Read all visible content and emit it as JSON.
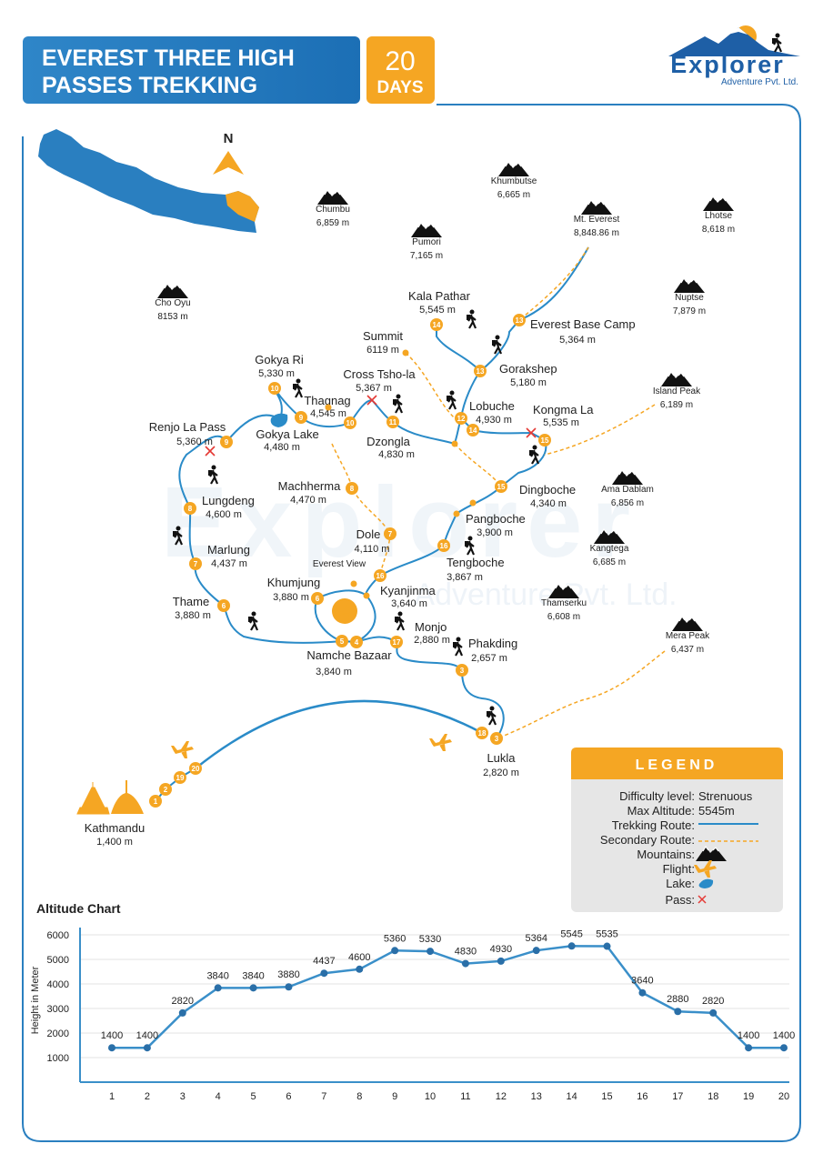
{
  "header": {
    "title_lines": [
      "EVEREST THREE HIGH",
      "PASSES TREKKING"
    ],
    "days_number": "20",
    "days_label": "DAYS"
  },
  "logo": {
    "name": "Explorer",
    "tagline": "Adventure Pvt. Ltd."
  },
  "map": {
    "compass": "N",
    "mountains": [
      {
        "name": "Chumbu",
        "altitude": "6,859 m"
      },
      {
        "name": "Khumbutse",
        "altitude": "6,665 m"
      },
      {
        "name": "Mt. Everest",
        "altitude": "8,848.86 m"
      },
      {
        "name": "Lhotse",
        "altitude": "8,618 m"
      },
      {
        "name": "Pumori",
        "altitude": "7,165 m"
      },
      {
        "name": "Cho Oyu",
        "altitude": "8153 m"
      },
      {
        "name": "Nuptse",
        "altitude": "7,879 m"
      },
      {
        "name": "Island Peak",
        "altitude": "6,189 m"
      },
      {
        "name": "Ama Dablam",
        "altitude": "6,856 m"
      },
      {
        "name": "Kangtega",
        "altitude": "6,685 m"
      },
      {
        "name": "Thamserku",
        "altitude": "6,608 m"
      },
      {
        "name": "Mera Peak",
        "altitude": "6,437 m"
      }
    ],
    "places": [
      {
        "name": "Kala Pathar",
        "altitude": "5,545 m"
      },
      {
        "name": "Everest Base Camp",
        "altitude": "5,364  m"
      },
      {
        "name": "Summit",
        "altitude": "6119 m"
      },
      {
        "name": "Gorakshep",
        "altitude": "5,180 m"
      },
      {
        "name": "Gokya Ri",
        "altitude": "5,330 m"
      },
      {
        "name": "Cross Tsho-la",
        "altitude": "5,367 m"
      },
      {
        "name": "Thagnag",
        "altitude": "4,545 m"
      },
      {
        "name": "Lobuche",
        "altitude": "4,930 m"
      },
      {
        "name": "Kongma La",
        "altitude": "5,535 m"
      },
      {
        "name": "Renjo La Pass",
        "altitude": "5,360 m"
      },
      {
        "name": "Gokya Lake",
        "altitude": "4,480 m"
      },
      {
        "name": "Dzongla",
        "altitude": "4,830 m"
      },
      {
        "name": "Machherma",
        "altitude": "4,470 m"
      },
      {
        "name": "Dingboche",
        "altitude": "4,340 m"
      },
      {
        "name": "Lungdeng",
        "altitude": "4,600 m"
      },
      {
        "name": "Pangboche",
        "altitude": "3,900 m"
      },
      {
        "name": "Dole",
        "altitude": "4,110 m"
      },
      {
        "name": "Marlung",
        "altitude": "4,437 m"
      },
      {
        "name": "Tengboche",
        "altitude": "3,867 m"
      },
      {
        "name": "Everest View"
      },
      {
        "name": "Khumjung",
        "altitude": "3,880 m"
      },
      {
        "name": "Kyanjinma",
        "altitude": "3,640 m"
      },
      {
        "name": "Thame",
        "altitude": "3,880 m"
      },
      {
        "name": "Monjo",
        "altitude": "2,880 m"
      },
      {
        "name": "Phakding",
        "altitude": "2,657 m"
      },
      {
        "name": "Namche Bazaar",
        "altitude": "3,840 m"
      },
      {
        "name": "Lukla",
        "altitude": "2,820 m"
      },
      {
        "name": "Kathmandu",
        "altitude": "1,400 m"
      }
    ],
    "day_markers": [
      14,
      13,
      13,
      10,
      9,
      10,
      11,
      12,
      14,
      15,
      9,
      8,
      8,
      15,
      7,
      16,
      7,
      16,
      6,
      6,
      5,
      4,
      17,
      3,
      18,
      3,
      1,
      2,
      19,
      20
    ]
  },
  "legend": {
    "title": "LEGEND",
    "rows": [
      {
        "label": "Difficulty level:",
        "value": "Strenuous"
      },
      {
        "label": "Max Altitude:",
        "value": "5545m"
      },
      {
        "label": "Trekking Route:"
      },
      {
        "label": "Secondary Route:"
      },
      {
        "label": "Mountains:"
      },
      {
        "label": "Flight:"
      },
      {
        "label": "Lake:"
      },
      {
        "label": "Pass:"
      }
    ]
  },
  "chart_data": {
    "type": "line",
    "title": "Altitude Chart",
    "y_label": "Height in Meter",
    "categories": [
      "1",
      "2",
      "3",
      "4",
      "5",
      "6",
      "7",
      "8",
      "9",
      "10",
      "11",
      "12",
      "13",
      "14",
      "15",
      "16",
      "17",
      "18",
      "19",
      "20"
    ],
    "values": [
      1400,
      1400,
      2820,
      3840,
      3840,
      3880,
      4437,
      4600,
      5360,
      5330,
      4830,
      4930,
      5364,
      5545,
      5535,
      3640,
      2880,
      2820,
      1400,
      1400
    ],
    "color": "#3a8fc9",
    "marker_color": "#2a6fa8",
    "ylim": [
      0,
      6000
    ],
    "yticks": [
      1000,
      2000,
      3000,
      4000,
      5000,
      6000
    ],
    "grid": true
  }
}
